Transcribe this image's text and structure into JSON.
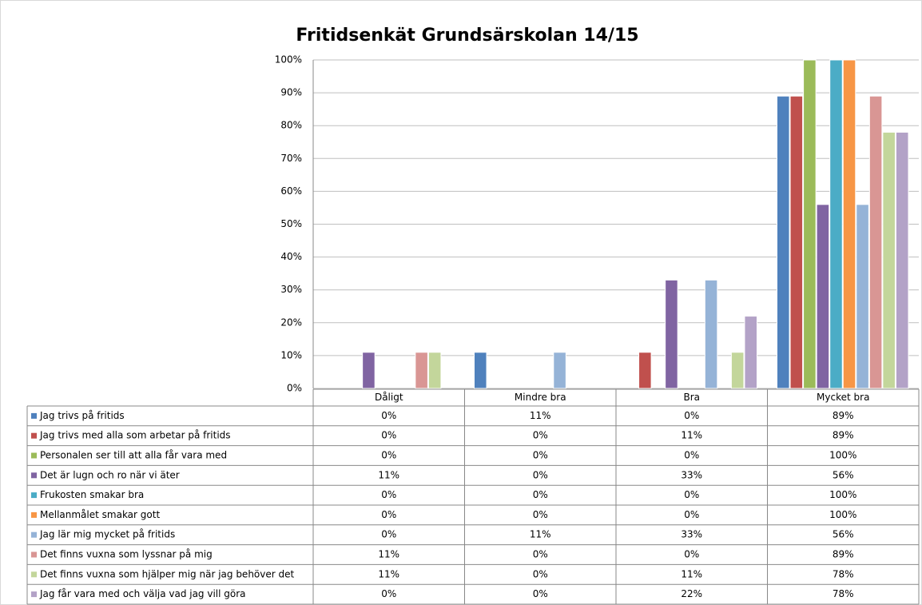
{
  "chart_data": {
    "type": "bar",
    "title": "Fritidsenkät Grundsärskolan 14/15",
    "categories": [
      "Dåligt",
      "Mindre bra",
      "Bra",
      "Mycket bra"
    ],
    "series": [
      {
        "name": "Jag trivs på fritids",
        "color": "#4F81BD",
        "values": [
          0,
          11,
          0,
          89
        ],
        "value_labels": [
          "0%",
          "11%",
          "0%",
          "89%"
        ]
      },
      {
        "name": "Jag trivs med alla som arbetar på fritids",
        "color": "#C0504D",
        "values": [
          0,
          0,
          11,
          89
        ],
        "value_labels": [
          "0%",
          "0%",
          "11%",
          "89%"
        ]
      },
      {
        "name": "Personalen ser till att alla får vara med",
        "color": "#9BBB59",
        "values": [
          0,
          0,
          0,
          100
        ],
        "value_labels": [
          "0%",
          "0%",
          "0%",
          "100%"
        ]
      },
      {
        "name": "Det är lugn och ro när vi äter",
        "color": "#8064A2",
        "values": [
          11,
          0,
          33,
          56
        ],
        "value_labels": [
          "11%",
          "0%",
          "33%",
          "56%"
        ]
      },
      {
        "name": "Frukosten smakar bra",
        "color": "#4BACC6",
        "values": [
          0,
          0,
          0,
          100
        ],
        "value_labels": [
          "0%",
          "0%",
          "0%",
          "100%"
        ]
      },
      {
        "name": "Mellanmålet smakar gott",
        "color": "#F79646",
        "values": [
          0,
          0,
          0,
          100
        ],
        "value_labels": [
          "0%",
          "0%",
          "0%",
          "100%"
        ]
      },
      {
        "name": "Jag lär mig mycket på fritids",
        "color": "#95B3D7",
        "values": [
          0,
          11,
          33,
          56
        ],
        "value_labels": [
          "0%",
          "11%",
          "33%",
          "56%"
        ]
      },
      {
        "name": "Det finns vuxna som lyssnar på mig",
        "color": "#D99694",
        "values": [
          11,
          0,
          0,
          89
        ],
        "value_labels": [
          "11%",
          "0%",
          "0%",
          "89%"
        ]
      },
      {
        "name": "Det finns vuxna som hjälper mig när jag behöver det",
        "color": "#C3D69B",
        "values": [
          11,
          0,
          11,
          78
        ],
        "value_labels": [
          "11%",
          "0%",
          "11%",
          "78%"
        ]
      },
      {
        "name": "Jag får vara med och välja vad jag vill göra",
        "color": "#B3A2C7",
        "values": [
          0,
          0,
          22,
          78
        ],
        "value_labels": [
          "0%",
          "0%",
          "22%",
          "78%"
        ]
      }
    ],
    "ylim": [
      0,
      100
    ],
    "yticks": [
      {
        "value": 0,
        "label": "0%"
      },
      {
        "value": 10,
        "label": "10%"
      },
      {
        "value": 20,
        "label": "20%"
      },
      {
        "value": 30,
        "label": "30%"
      },
      {
        "value": 40,
        "label": "40%"
      },
      {
        "value": 50,
        "label": "50%"
      },
      {
        "value": 60,
        "label": "60%"
      },
      {
        "value": 70,
        "label": "70%"
      },
      {
        "value": 80,
        "label": "80%"
      },
      {
        "value": 90,
        "label": "90%"
      },
      {
        "value": 100,
        "label": "100%"
      }
    ],
    "grid": true
  }
}
